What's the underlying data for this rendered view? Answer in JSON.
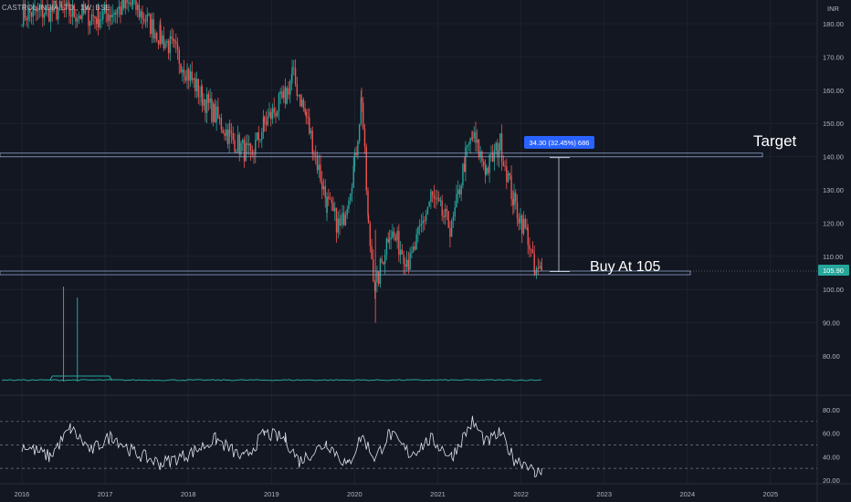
{
  "header": {
    "symbol_label": "CASTROL INDIA LTD., 1W, BSE",
    "currency": "INR"
  },
  "colors": {
    "background": "#131722",
    "up": "#26a69a",
    "down": "#ef5350",
    "grid": "#1e2230",
    "level_line": "#8fa3c7",
    "rsi_line": "#e0e3eb",
    "volume_ma": "#26a69a",
    "price_badge": "#26a69a",
    "measure_badge": "#2962ff"
  },
  "chart_data": [
    {
      "type": "candlestick",
      "ylim": [
        80,
        188
      ],
      "x_ticks": [
        "2016",
        "2017",
        "2018",
        "2019",
        "2020",
        "2021",
        "2022",
        "2023",
        "2024",
        "2025"
      ],
      "y_ticks": [
        "180.00",
        "170.00",
        "160.00",
        "150.00",
        "140.00",
        "130.00",
        "120.00",
        "110.00",
        "100.00",
        "90.00",
        "80.00"
      ],
      "weekly_close_anchors": [
        [
          "2016-01",
          183
        ],
        [
          "2016-06",
          184
        ],
        [
          "2016-12",
          182
        ],
        [
          "2017-05",
          186
        ],
        [
          "2017-09",
          176
        ],
        [
          "2017-11",
          172
        ],
        [
          "2018-03",
          158
        ],
        [
          "2018-07",
          146
        ],
        [
          "2018-10",
          140
        ],
        [
          "2018-12",
          150
        ],
        [
          "2019-03",
          158
        ],
        [
          "2019-04",
          165
        ],
        [
          "2019-06",
          152
        ],
        [
          "2019-09",
          126
        ],
        [
          "2019-11",
          118
        ],
        [
          "2020-01",
          138
        ],
        [
          "2020-02",
          158
        ],
        [
          "2020-03",
          118
        ],
        [
          "2020-04",
          100
        ],
        [
          "2020-06",
          118
        ],
        [
          "2020-09",
          108
        ],
        [
          "2020-12",
          128
        ],
        [
          "2021-03",
          118
        ],
        [
          "2021-05",
          140
        ],
        [
          "2021-06",
          146
        ],
        [
          "2021-08",
          136
        ],
        [
          "2021-10",
          144
        ],
        [
          "2021-12",
          126
        ],
        [
          "2022-02",
          116
        ],
        [
          "2022-03",
          104
        ],
        [
          "2022-04",
          105.9
        ]
      ],
      "last_price": "105.90",
      "annotations": {
        "target_label": "Target",
        "buy_label": "Buy At 105",
        "measure_label": "34.30 (32.45%) 686"
      },
      "levels": [
        140.5,
        105
      ]
    },
    {
      "type": "volume",
      "spike_dates": [
        "2016-07",
        "2016-09"
      ]
    },
    {
      "type": "line",
      "name": "RSI",
      "ylim": [
        15,
        85
      ],
      "y_ticks": [
        "80.00",
        "60.00",
        "40.00",
        "20.00"
      ],
      "bands": [
        70,
        30,
        50
      ],
      "anchors": [
        [
          "2016-01",
          50
        ],
        [
          "2016-05",
          40
        ],
        [
          "2016-08",
          64
        ],
        [
          "2016-11",
          45
        ],
        [
          "2017-02",
          58
        ],
        [
          "2017-05",
          44
        ],
        [
          "2017-09",
          34
        ],
        [
          "2018-01",
          42
        ],
        [
          "2018-05",
          55
        ],
        [
          "2018-09",
          38
        ],
        [
          "2018-12",
          60
        ],
        [
          "2019-03",
          55
        ],
        [
          "2019-05",
          36
        ],
        [
          "2019-09",
          52
        ],
        [
          "2019-12",
          32
        ],
        [
          "2020-02",
          58
        ],
        [
          "2020-04",
          38
        ],
        [
          "2020-06",
          60
        ],
        [
          "2020-09",
          42
        ],
        [
          "2020-12",
          55
        ],
        [
          "2021-03",
          40
        ],
        [
          "2021-06",
          70
        ],
        [
          "2021-08",
          52
        ],
        [
          "2021-10",
          60
        ],
        [
          "2021-12",
          38
        ],
        [
          "2022-02",
          34
        ],
        [
          "2022-03",
          24
        ],
        [
          "2022-04",
          30
        ]
      ]
    }
  ]
}
